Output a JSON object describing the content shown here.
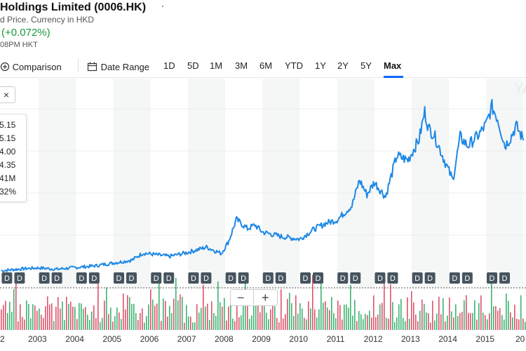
{
  "header": {
    "title": "Holdings Limited (0006.HK)",
    "subtitle": "d Price. Currency in HKD",
    "change": "(+0.072%)",
    "time": "08PM HKT"
  },
  "toolbar": {
    "comparison_label": "Comparison",
    "date_range_label": "Date Range",
    "ranges": [
      "1D",
      "5D",
      "1M",
      "3M",
      "6M",
      "YTD",
      "1Y",
      "2Y",
      "5Y",
      "Max"
    ],
    "active_range": "Max"
  },
  "close_label": "×",
  "tooltip": [
    "5.15",
    "5.15",
    "4.00",
    "4.35",
    "41M",
    "32%"
  ],
  "watermark": "YA",
  "zoom": {
    "minus": "−",
    "plus": "+"
  },
  "x_axis_labels": [
    "2",
    "2003",
    "2004",
    "2005",
    "2006",
    "2007",
    "2008",
    "2009",
    "2010",
    "2011",
    "2012",
    "2013",
    "2014",
    "2015",
    "20"
  ],
  "dividend_marker_label": "D",
  "colors": {
    "line": "#1e88e5",
    "up": "#3cb371",
    "down": "#e0526b",
    "accent": "#0f69ff",
    "positive": "#1b9a3b"
  },
  "chart_data": {
    "type": "line",
    "x_range": [
      "2002",
      "2016"
    ],
    "x": [
      2002.0,
      2002.5,
      2003.0,
      2003.5,
      2003.8,
      2004.5,
      2005.0,
      2005.5,
      2005.8,
      2006.5,
      2007.0,
      2007.5,
      2007.9,
      2008.1,
      2008.3,
      2008.6,
      2008.8,
      2009.0,
      2009.5,
      2010.0,
      2010.4,
      2010.7,
      2011.0,
      2011.4,
      2011.6,
      2011.8,
      2012.0,
      2012.3,
      2012.6,
      2012.9,
      2013.2,
      2013.35,
      2013.45,
      2013.6,
      2013.9,
      2014.1,
      2014.3,
      2014.5,
      2014.8,
      2015.0,
      2015.15,
      2015.3,
      2015.5,
      2015.65,
      2015.8,
      2016.0
    ],
    "y": [
      2.0,
      2.8,
      3.3,
      2.7,
      3.2,
      4.2,
      5.5,
      6.8,
      10.0,
      8.5,
      10.3,
      12.7,
      9.8,
      15.5,
      25.2,
      21.0,
      22.7,
      19.5,
      17.5,
      16.3,
      21.0,
      23.5,
      25.0,
      31.5,
      43.0,
      36.5,
      42.0,
      35.5,
      54.0,
      52.0,
      61.5,
      74.0,
      66.5,
      63.5,
      51.0,
      43.0,
      62.5,
      58.5,
      63.5,
      68.3,
      76.2,
      71.0,
      58.5,
      62.2,
      67.5,
      61.0
    ],
    "dividend_markers_x": [
      2002.35,
      2003.35,
      2004.35,
      2005.35,
      2006.35,
      2007.35,
      2008.35,
      2009.35,
      2010.35,
      2011.35,
      2012.35,
      2013.35,
      2014.35,
      2015.35
    ]
  }
}
